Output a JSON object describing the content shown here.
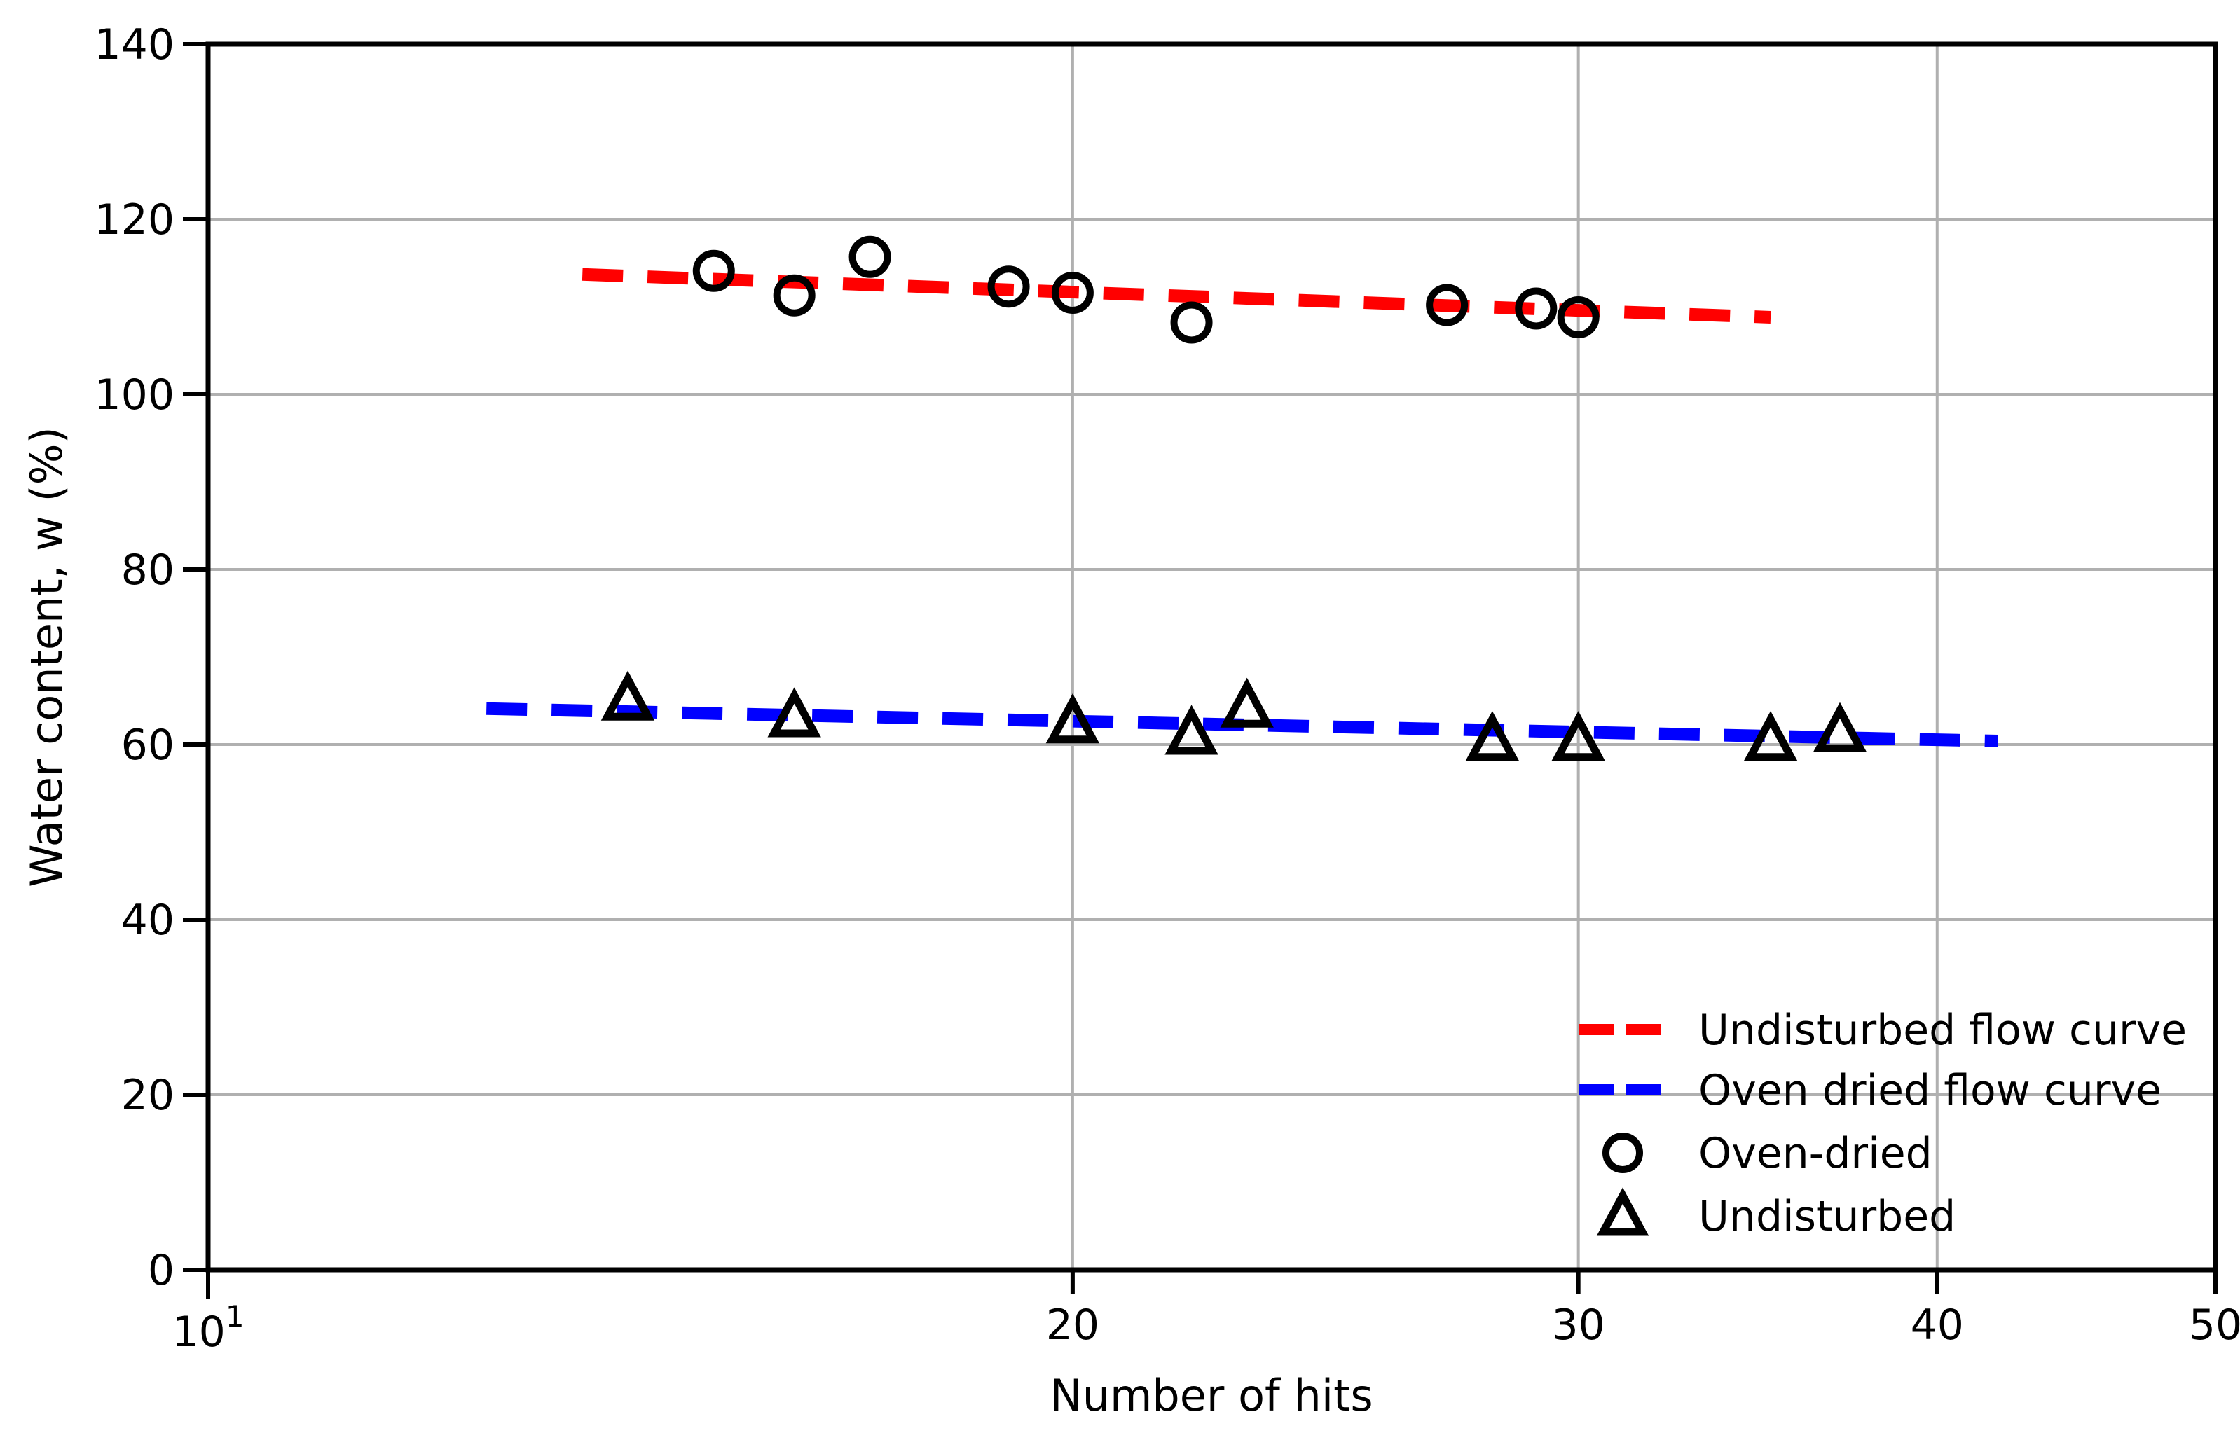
{
  "figure": {
    "background": "#ffffff",
    "axis_color": "#000000"
  },
  "chart_data": {
    "type": "scatter",
    "title": "",
    "xlabel": "Number of hits",
    "ylabel": "Water content, w (%)",
    "x_scale": "log",
    "xlim": [
      10,
      50
    ],
    "ylim": [
      0,
      140
    ],
    "x_ticks": [
      {
        "value": 10,
        "label": "10",
        "exponent": "1"
      },
      {
        "value": 20,
        "label": "20"
      },
      {
        "value": 30,
        "label": "30"
      },
      {
        "value": 40,
        "label": "40"
      },
      {
        "value": 50,
        "label": "50"
      }
    ],
    "y_ticks": [
      0,
      20,
      40,
      60,
      80,
      100,
      120,
      140
    ],
    "grid": {
      "show": true,
      "color": "#b0b0b0",
      "x_lines": [
        20,
        30,
        40
      ],
      "y_lines": [
        20,
        40,
        60,
        80,
        100,
        120
      ]
    },
    "series": [
      {
        "name": "Undisturbed flow curve",
        "kind": "line",
        "linestyle": "dashed",
        "color": "#ff0000",
        "points": [
          [
            13.5,
            113.7
          ],
          [
            35,
            108.8
          ]
        ]
      },
      {
        "name": "Oven dried flow curve",
        "kind": "line",
        "linestyle": "dashed",
        "color": "#0000ff",
        "points": [
          [
            12.5,
            64.1
          ],
          [
            42,
            60.4
          ]
        ]
      },
      {
        "name": "Oven-dried",
        "kind": "scatter",
        "marker": "circle",
        "color": "#000000",
        "points": [
          [
            15,
            114.1
          ],
          [
            16,
            111.3
          ],
          [
            17,
            115.7
          ],
          [
            19,
            112.3
          ],
          [
            20,
            111.6
          ],
          [
            22,
            108.2
          ],
          [
            27,
            110.2
          ],
          [
            29,
            109.8
          ],
          [
            30,
            108.8
          ]
        ]
      },
      {
        "name": "Undisturbed",
        "kind": "scatter",
        "marker": "triangle",
        "color": "#000000",
        "points": [
          [
            14,
            65.1
          ],
          [
            16,
            63.2
          ],
          [
            20,
            62.5
          ],
          [
            22,
            61.2
          ],
          [
            23,
            64.3
          ],
          [
            28,
            60.5
          ],
          [
            30,
            60.5
          ],
          [
            35,
            60.5
          ],
          [
            37,
            61.5
          ]
        ]
      }
    ],
    "legend": {
      "position": "lower-right",
      "frame": false,
      "entries": [
        "Undisturbed flow curve",
        "Oven dried flow curve",
        "Oven-dried",
        "Undisturbed"
      ]
    }
  }
}
